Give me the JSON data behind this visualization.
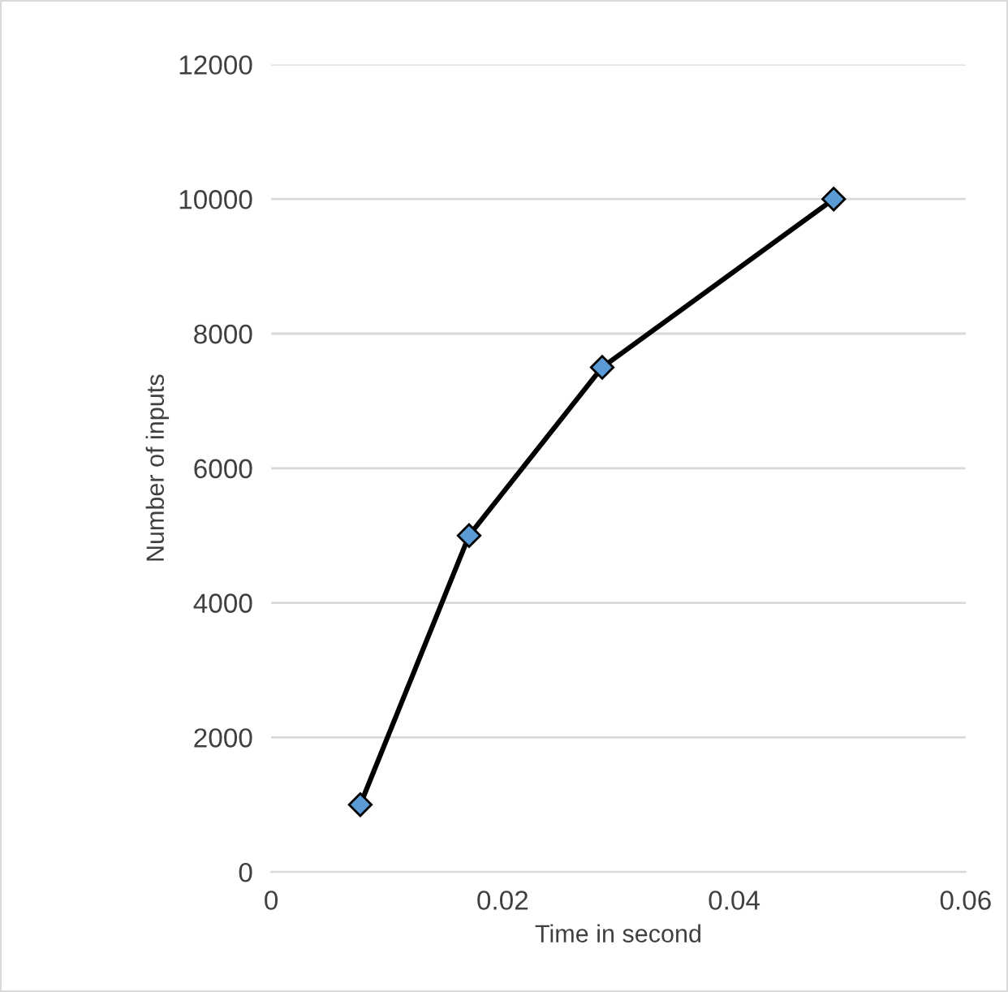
{
  "chart_data": {
    "type": "line",
    "xlabel": "Time in second",
    "ylabel": "Number of inputs",
    "x": [
      0.0077,
      0.0171,
      0.0286,
      0.0486
    ],
    "series": [
      {
        "color": "#000000",
        "values": [
          1000,
          5000,
          7500,
          10000
        ]
      }
    ],
    "xlim": [
      0,
      0.06
    ],
    "xticks": [
      0,
      0.02,
      0.04,
      0.06
    ],
    "ylim": [
      0,
      12000
    ],
    "yticks": [
      0,
      2000,
      4000,
      6000,
      8000,
      10000,
      12000
    ],
    "grid": "y",
    "marker": "diamond",
    "line_style": "solid",
    "legend": false
  }
}
